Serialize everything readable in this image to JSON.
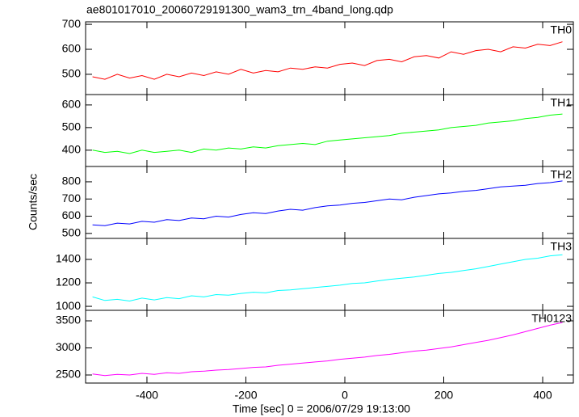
{
  "title": "ae801017010_20060729191300_wam3_trn_4band_long.qdp",
  "ylabel": "Counts/sec",
  "xlabel": "Time [sec] 0 = 2006/07/29 19:13:00",
  "xlim": [
    -524,
    462
  ],
  "xticks": [
    -400,
    -200,
    0,
    200,
    400
  ],
  "x": [
    -510,
    -485,
    -460,
    -435,
    -410,
    -385,
    -360,
    -335,
    -310,
    -285,
    -260,
    -235,
    -210,
    -185,
    -160,
    -135,
    -110,
    -85,
    -60,
    -35,
    -10,
    15,
    40,
    65,
    90,
    115,
    140,
    165,
    190,
    215,
    240,
    265,
    290,
    315,
    340,
    365,
    390,
    415,
    440
  ],
  "chart_data": [
    {
      "type": "line",
      "label": "TH0",
      "color": "#ff0000",
      "ylim": [
        419,
        710
      ],
      "yticks": [
        500,
        600,
        700
      ],
      "values": [
        490,
        480,
        500,
        485,
        495,
        480,
        500,
        490,
        505,
        495,
        510,
        500,
        520,
        505,
        515,
        510,
        525,
        520,
        530,
        525,
        540,
        545,
        535,
        555,
        560,
        550,
        570,
        575,
        565,
        590,
        580,
        595,
        600,
        590,
        610,
        605,
        620,
        615,
        630
      ]
    },
    {
      "type": "line",
      "label": "TH1",
      "color": "#00ff00",
      "ylim": [
        328,
        646
      ],
      "yticks": [
        400,
        500,
        600
      ],
      "values": [
        400,
        390,
        395,
        385,
        400,
        390,
        395,
        400,
        390,
        405,
        400,
        410,
        405,
        415,
        410,
        420,
        425,
        430,
        425,
        440,
        445,
        450,
        455,
        460,
        465,
        475,
        480,
        485,
        490,
        500,
        505,
        510,
        520,
        525,
        530,
        540,
        545,
        555,
        560
      ]
    },
    {
      "type": "line",
      "label": "TH2",
      "color": "#0000ff",
      "ylim": [
        471,
        889
      ],
      "yticks": [
        500,
        600,
        700,
        800
      ],
      "values": [
        550,
        545,
        560,
        555,
        570,
        565,
        580,
        575,
        590,
        585,
        600,
        595,
        610,
        620,
        615,
        630,
        640,
        635,
        650,
        660,
        665,
        675,
        680,
        690,
        700,
        695,
        710,
        720,
        730,
        735,
        745,
        750,
        760,
        770,
        775,
        780,
        790,
        795,
        805
      ]
    },
    {
      "type": "line",
      "label": "TH3",
      "color": "#00ffff",
      "ylim": [
        966,
        1579
      ],
      "yticks": [
        1000,
        1200,
        1400
      ],
      "values": [
        1080,
        1050,
        1060,
        1045,
        1070,
        1055,
        1075,
        1065,
        1090,
        1080,
        1100,
        1095,
        1110,
        1120,
        1115,
        1135,
        1140,
        1150,
        1160,
        1170,
        1180,
        1195,
        1200,
        1215,
        1230,
        1240,
        1250,
        1265,
        1280,
        1290,
        1305,
        1320,
        1340,
        1360,
        1380,
        1400,
        1410,
        1430,
        1440
      ]
    },
    {
      "type": "line",
      "label": "TH0123",
      "color": "#ff00ff",
      "ylim": [
        2351,
        3694
      ],
      "yticks": [
        2500,
        3000,
        3500
      ],
      "values": [
        2520,
        2490,
        2510,
        2500,
        2530,
        2510,
        2540,
        2530,
        2560,
        2570,
        2590,
        2600,
        2620,
        2640,
        2650,
        2680,
        2700,
        2720,
        2740,
        2760,
        2790,
        2810,
        2830,
        2860,
        2880,
        2910,
        2940,
        2960,
        2990,
        3020,
        3060,
        3100,
        3140,
        3190,
        3240,
        3300,
        3360,
        3420,
        3470
      ]
    }
  ]
}
